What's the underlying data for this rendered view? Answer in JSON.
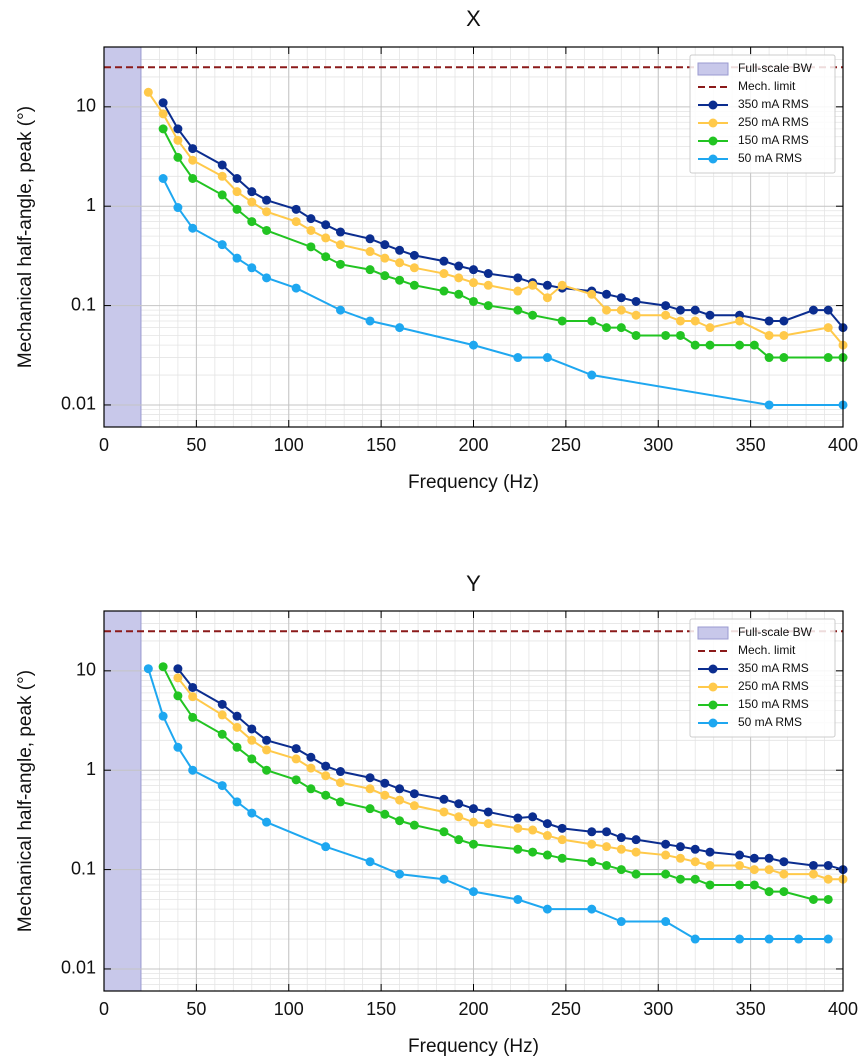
{
  "chart_data": [
    {
      "type": "line",
      "title": "X",
      "x_label": "Frequency (Hz)",
      "y_label": "Mechanical half-angle, peak (°)",
      "xlim": [
        0,
        400
      ],
      "xticks": [
        0,
        50,
        100,
        150,
        200,
        250,
        300,
        350,
        400
      ],
      "ylim": [
        0.006,
        40
      ],
      "yticks": [
        0.01,
        0.1,
        1,
        10
      ],
      "log_y": true,
      "grid": true,
      "minor_grid": true,
      "legend": "upper right",
      "shaded_region": {
        "name": "Full-scale BW",
        "x": [
          0,
          20
        ],
        "color": "#c8c8ea"
      },
      "hline": {
        "name": "Mech. limit",
        "value": 25,
        "color": "#8b1a1a"
      },
      "series": [
        {
          "name": "350 mA RMS",
          "color": "#0b2d8f",
          "x": [
            32,
            40,
            48,
            64,
            72,
            80,
            88,
            104,
            112,
            120,
            128,
            144,
            152,
            160,
            168,
            184,
            192,
            200,
            208,
            224,
            232,
            240,
            248,
            264,
            272,
            280,
            288,
            304,
            312,
            320,
            328,
            344,
            360,
            368,
            384,
            392,
            400
          ],
          "values": [
            11,
            6,
            3.8,
            2.6,
            1.9,
            1.4,
            1.15,
            0.93,
            0.75,
            0.65,
            0.55,
            0.47,
            0.41,
            0.36,
            0.32,
            0.28,
            0.25,
            0.23,
            0.21,
            0.19,
            0.17,
            0.16,
            0.15,
            0.14,
            0.13,
            0.12,
            0.11,
            0.1,
            0.09,
            0.09,
            0.08,
            0.08,
            0.07,
            0.07,
            0.09,
            0.09,
            0.06
          ]
        },
        {
          "name": "250 mA RMS",
          "color": "#ffc94a",
          "x": [
            24,
            32,
            40,
            48,
            64,
            72,
            80,
            88,
            104,
            112,
            120,
            128,
            144,
            152,
            160,
            168,
            184,
            192,
            200,
            208,
            224,
            232,
            240,
            248,
            264,
            272,
            280,
            288,
            304,
            312,
            320,
            328,
            344,
            360,
            368,
            392,
            400
          ],
          "values": [
            14,
            8.5,
            4.6,
            2.9,
            2.0,
            1.4,
            1.1,
            0.88,
            0.7,
            0.57,
            0.48,
            0.41,
            0.35,
            0.3,
            0.27,
            0.24,
            0.21,
            0.19,
            0.17,
            0.16,
            0.14,
            0.16,
            0.12,
            0.16,
            0.13,
            0.09,
            0.09,
            0.08,
            0.08,
            0.07,
            0.07,
            0.06,
            0.07,
            0.05,
            0.05,
            0.06,
            0.04
          ]
        },
        {
          "name": "150 mA RMS",
          "color": "#22c422",
          "x": [
            32,
            40,
            48,
            64,
            72,
            80,
            88,
            112,
            120,
            128,
            144,
            152,
            160,
            168,
            184,
            192,
            200,
            208,
            224,
            232,
            248,
            264,
            272,
            280,
            288,
            304,
            312,
            320,
            328,
            344,
            352,
            360,
            368,
            392,
            400
          ],
          "values": [
            6,
            3.1,
            1.9,
            1.3,
            0.93,
            0.7,
            0.57,
            0.39,
            0.31,
            0.26,
            0.23,
            0.2,
            0.18,
            0.16,
            0.14,
            0.13,
            0.11,
            0.1,
            0.09,
            0.08,
            0.07,
            0.07,
            0.06,
            0.06,
            0.05,
            0.05,
            0.05,
            0.04,
            0.04,
            0.04,
            0.04,
            0.03,
            0.03,
            0.03,
            0.03
          ]
        },
        {
          "name": "50 mA RMS",
          "color": "#1ea7f0",
          "x": [
            32,
            40,
            48,
            64,
            72,
            80,
            88,
            104,
            128,
            144,
            160,
            200,
            224,
            240,
            264,
            360,
            400
          ],
          "values": [
            1.9,
            0.97,
            0.6,
            0.41,
            0.3,
            0.24,
            0.19,
            0.15,
            0.09,
            0.07,
            0.06,
            0.04,
            0.03,
            0.03,
            0.02,
            0.01,
            0.01
          ]
        }
      ]
    },
    {
      "type": "line",
      "title": "Y",
      "x_label": "Frequency (Hz)",
      "y_label": "Mechanical half-angle, peak (°)",
      "xlim": [
        0,
        400
      ],
      "xticks": [
        0,
        50,
        100,
        150,
        200,
        250,
        300,
        350,
        400
      ],
      "ylim": [
        0.006,
        40
      ],
      "yticks": [
        0.01,
        0.1,
        1,
        10
      ],
      "log_y": true,
      "grid": true,
      "minor_grid": true,
      "legend": "upper right",
      "shaded_region": {
        "name": "Full-scale BW",
        "x": [
          0,
          20
        ],
        "color": "#c8c8ea"
      },
      "hline": {
        "name": "Mech. limit",
        "value": 25,
        "color": "#8b1a1a"
      },
      "series": [
        {
          "name": "350 mA RMS",
          "color": "#0b2d8f",
          "x": [
            40,
            48,
            64,
            72,
            80,
            88,
            104,
            112,
            120,
            128,
            144,
            152,
            160,
            168,
            184,
            192,
            200,
            208,
            224,
            232,
            240,
            248,
            264,
            272,
            280,
            288,
            304,
            312,
            320,
            328,
            344,
            352,
            360,
            368,
            384,
            392,
            400
          ],
          "values": [
            10.5,
            6.8,
            4.6,
            3.5,
            2.6,
            2.0,
            1.65,
            1.35,
            1.1,
            0.97,
            0.84,
            0.74,
            0.65,
            0.58,
            0.51,
            0.46,
            0.41,
            0.38,
            0.33,
            0.34,
            0.29,
            0.26,
            0.24,
            0.24,
            0.21,
            0.2,
            0.18,
            0.17,
            0.16,
            0.15,
            0.14,
            0.13,
            0.13,
            0.12,
            0.11,
            0.11,
            0.1
          ]
        },
        {
          "name": "250 mA RMS",
          "color": "#ffc94a",
          "x": [
            40,
            48,
            64,
            72,
            80,
            88,
            104,
            112,
            120,
            128,
            144,
            152,
            160,
            168,
            184,
            192,
            200,
            208,
            224,
            232,
            240,
            248,
            264,
            272,
            280,
            288,
            304,
            312,
            320,
            328,
            344,
            352,
            360,
            368,
            384,
            392,
            400
          ],
          "values": [
            8.5,
            5.5,
            3.6,
            2.7,
            2.0,
            1.6,
            1.3,
            1.05,
            0.88,
            0.75,
            0.65,
            0.56,
            0.5,
            0.44,
            0.38,
            0.34,
            0.3,
            0.29,
            0.26,
            0.25,
            0.22,
            0.2,
            0.18,
            0.17,
            0.16,
            0.15,
            0.14,
            0.13,
            0.12,
            0.11,
            0.11,
            0.1,
            0.1,
            0.09,
            0.09,
            0.08,
            0.08
          ]
        },
        {
          "name": "150 mA RMS",
          "color": "#22c422",
          "x": [
            32,
            40,
            48,
            64,
            72,
            80,
            88,
            104,
            112,
            120,
            128,
            144,
            152,
            160,
            168,
            184,
            192,
            200,
            224,
            232,
            240,
            248,
            264,
            272,
            280,
            288,
            304,
            312,
            320,
            328,
            344,
            352,
            360,
            368,
            384,
            392
          ],
          "values": [
            11,
            5.6,
            3.4,
            2.3,
            1.7,
            1.3,
            1.0,
            0.8,
            0.65,
            0.56,
            0.48,
            0.41,
            0.36,
            0.31,
            0.28,
            0.24,
            0.2,
            0.18,
            0.16,
            0.15,
            0.14,
            0.13,
            0.12,
            0.11,
            0.1,
            0.09,
            0.09,
            0.08,
            0.08,
            0.07,
            0.07,
            0.07,
            0.06,
            0.06,
            0.05,
            0.05
          ]
        },
        {
          "name": "50 mA RMS",
          "color": "#1ea7f0",
          "x": [
            24,
            32,
            40,
            48,
            64,
            72,
            80,
            88,
            120,
            144,
            160,
            184,
            200,
            224,
            240,
            264,
            280,
            304,
            320,
            344,
            360,
            376,
            392
          ],
          "values": [
            10.5,
            3.5,
            1.7,
            1.0,
            0.7,
            0.48,
            0.37,
            0.3,
            0.17,
            0.12,
            0.09,
            0.08,
            0.06,
            0.05,
            0.04,
            0.04,
            0.03,
            0.03,
            0.02,
            0.02,
            0.02,
            0.02,
            0.02
          ]
        }
      ]
    }
  ]
}
